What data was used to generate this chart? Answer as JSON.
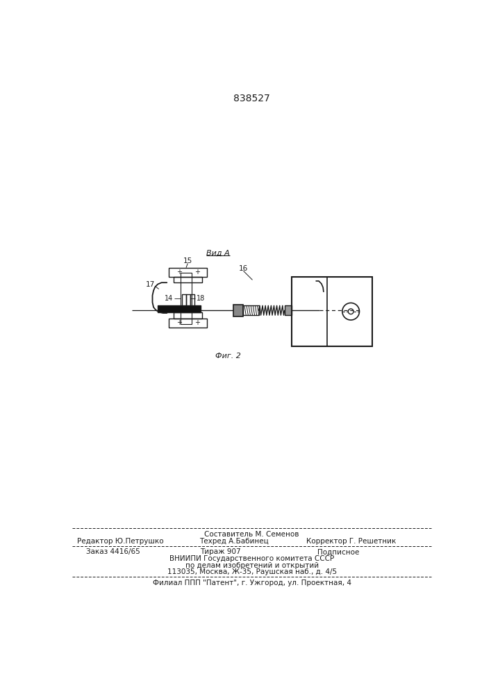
{
  "patent_number": "838527",
  "view_label": "Вид А",
  "fig_label": "Фиг. 2",
  "background_color": "#ffffff",
  "line_color": "#1a1a1a",
  "label_15": "15",
  "label_16": "16",
  "label_17": "17",
  "label_14": "14",
  "label_18": "18",
  "footer_line1": "Составитель М. Семенов",
  "footer_line2_col1": "Редактор Ю.Петрушко",
  "footer_line2_col2": "Техред А.Бабинец",
  "footer_line2_col3": "Корректор Г. Решетник",
  "footer_line3_col1": "Заказ 4416/65",
  "footer_line3_col2": "Тираж 907",
  "footer_line3_col3": "Подписное",
  "footer_line4": "ВНИИПИ Государственного комитета СССР",
  "footer_line5": "по делам изобретений и открытий",
  "footer_line6": "113035, Москва, Ж-35, Раушская наб., д. 4/5",
  "footer_line7": "Филиал ППП \"Патент\", г. Ужгород, ул. Проектная, 4"
}
